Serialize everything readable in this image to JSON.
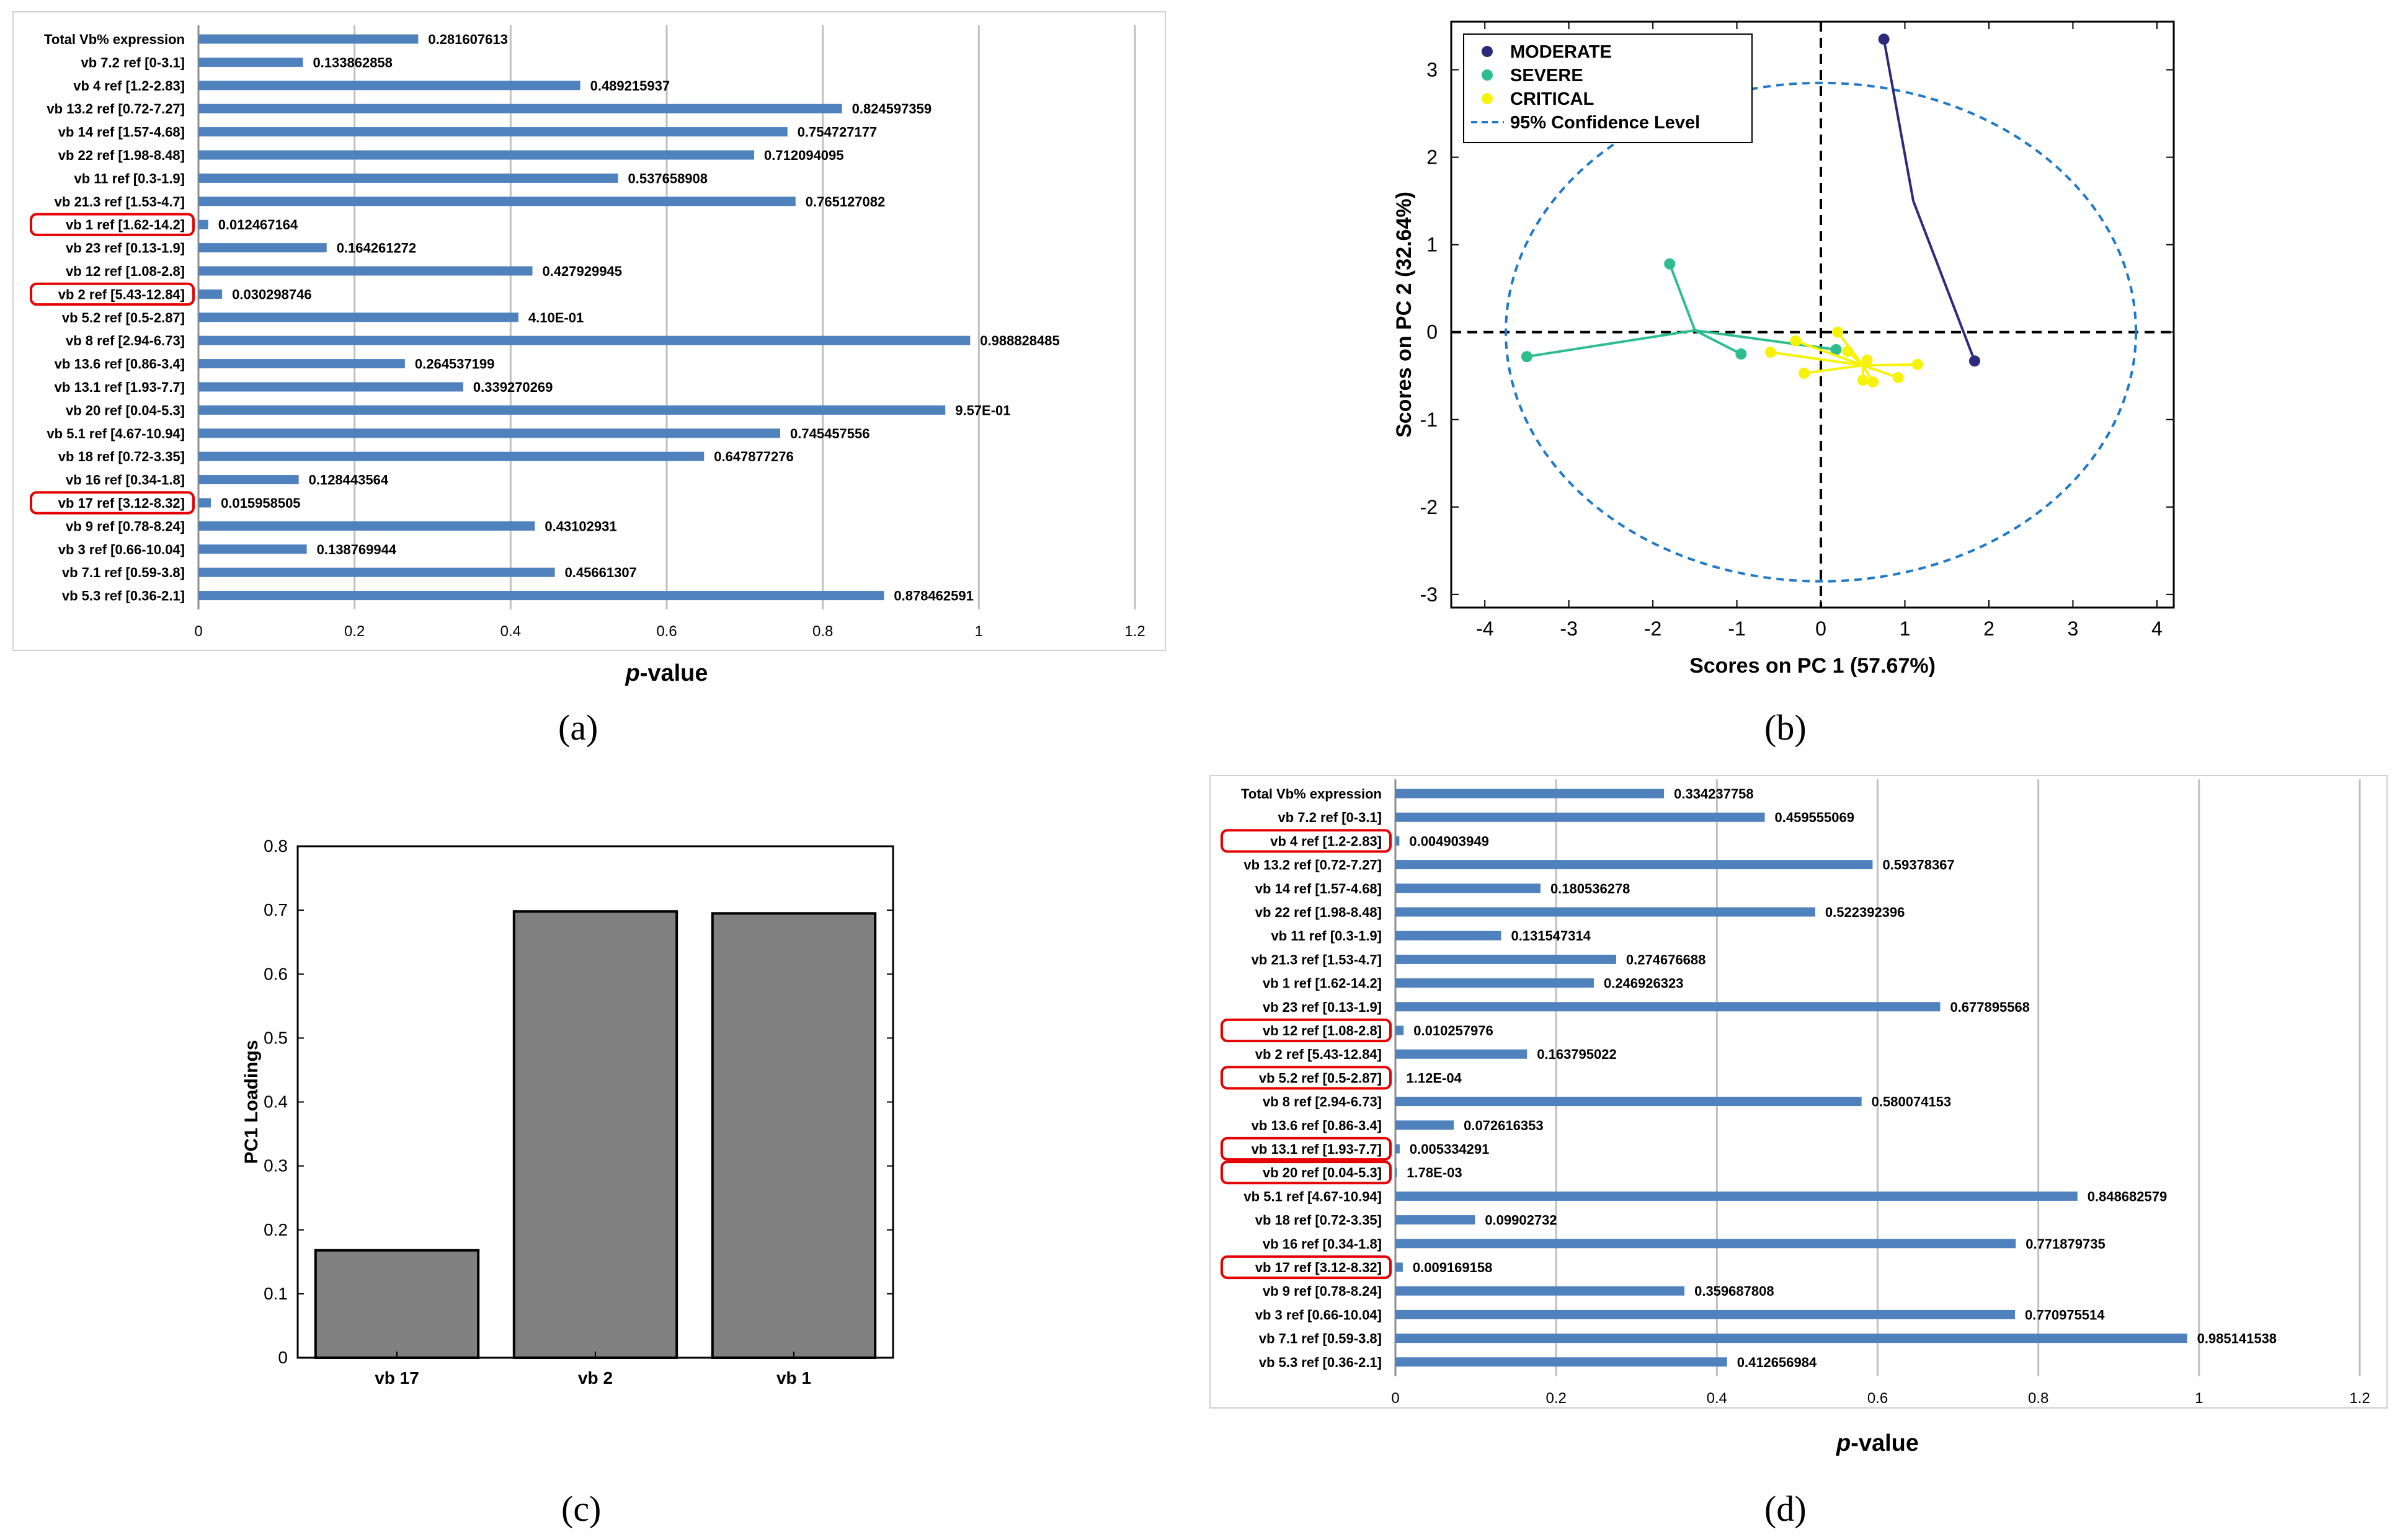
{
  "captions": {
    "a": "(a)",
    "b": "(b)",
    "c": "(c)",
    "d": "(d)"
  },
  "colors": {
    "bar": "#4F81BD",
    "highlight": "#E60000",
    "grid": "#BFBFBF",
    "moderate": "#2E2A7A",
    "severe": "#2DBE8C",
    "critical": "#F7F20A",
    "ellipse": "#1F78C8",
    "pcaBar": "#808080"
  },
  "chart_data": [
    {
      "id": "a",
      "type": "bar",
      "orientation": "horizontal",
      "xlabel_pre": "p",
      "xlabel_post": "-value",
      "xlim": [
        0,
        1.2
      ],
      "xticks": [
        "0",
        "0.2",
        "0.4",
        "0.6",
        "0.8",
        "1",
        "1.2"
      ],
      "categories": [
        "Total Vb% expression",
        "vb 7.2  ref [0-3.1]",
        "vb 4  ref [1.2-2.83]",
        "vb 13.2  ref [0.72-7.27]",
        "vb 14  ref [1.57-4.68]",
        "vb 22  ref [1.98-8.48]",
        "vb 11  ref [0.3-1.9]",
        "vb 21.3  ref [1.53-4.7]",
        "vb 1  ref [1.62-14.2]",
        "vb 23  ref [0.13-1.9]",
        "vb 12  ref [1.08-2.8]",
        "vb 2  ref [5.43-12.84]",
        "vb 5.2  ref [0.5-2.87]",
        "vb 8  ref [2.94-6.73]",
        "vb 13.6  ref [0.86-3.4]",
        "vb 13.1  ref [1.93-7.7]",
        "vb 20 ref [0.04-5.3]",
        "vb 5.1 ref [4.67-10.94]",
        "vb 18 ref [0.72-3.35]",
        "vb 16 ref [0.34-1.8]",
        "vb 17 ref [3.12-8.32]",
        "vb 9 ref [0.78-8.24]",
        "vb 3 ref [0.66-10.04]",
        "vb 7.1 ref [0.59-3.8]",
        "vb 5.3 ref [0.36-2.1]"
      ],
      "values": [
        0.281607613,
        0.133862858,
        0.489215937,
        0.824597359,
        0.754727177,
        0.712094095,
        0.537658908,
        0.765127082,
        0.012467164,
        0.164261272,
        0.427929945,
        0.030298746,
        0.41,
        0.988828485,
        0.264537199,
        0.339270269,
        0.957,
        0.745457556,
        0.647877276,
        0.128443564,
        0.015958505,
        0.43102931,
        0.138769944,
        0.45661307,
        0.878462591
      ],
      "value_labels": [
        "0.281607613",
        "0.133862858",
        "0.489215937",
        "0.824597359",
        "0.754727177",
        "0.712094095",
        "0.537658908",
        "0.765127082",
        "0.012467164",
        "0.164261272",
        "0.427929945",
        "0.030298746",
        "4.10E-01",
        "0.988828485",
        "0.264537199",
        "0.339270269",
        "9.57E-01",
        "0.745457556",
        "0.647877276",
        "0.128443564",
        "0.015958505",
        "0.43102931",
        "0.138769944",
        "0.45661307",
        "0.878462591"
      ],
      "highlighted": [
        8,
        11,
        20
      ]
    },
    {
      "id": "b",
      "type": "scatter",
      "xlabel": "Scores on PC 1 (57.67%)",
      "ylabel": "Scores on PC 2 (32.64%)",
      "xlim": [
        -4.4,
        4.2
      ],
      "ylim": [
        -3.15,
        3.55
      ],
      "xticks": [
        -4,
        -3,
        -2,
        -1,
        0,
        1,
        2,
        3,
        4
      ],
      "yticks": [
        3,
        2,
        1,
        0,
        -1,
        -2,
        -3
      ],
      "legend": [
        "MODERATE",
        "SEVERE",
        "CRITICAL",
        "95% Confidence Level"
      ],
      "ellipse": {
        "cx": 0,
        "cy": 0,
        "rx": 3.75,
        "ry": 2.85
      },
      "groups": [
        {
          "name": "MODERATE",
          "centroid": [
            1.1,
            1.5
          ],
          "points": [
            [
              0.75,
              3.35
            ],
            [
              1.83,
              -0.33
            ]
          ]
        },
        {
          "name": "SEVERE",
          "centroid": [
            -1.5,
            0.02
          ],
          "points": [
            [
              -1.8,
              0.78
            ],
            [
              -3.5,
              -0.28
            ],
            [
              -0.95,
              -0.25
            ],
            [
              0.18,
              -0.2
            ]
          ]
        },
        {
          "name": "CRITICAL",
          "centroid": [
            0.5,
            -0.38
          ],
          "points": [
            [
              -0.6,
              -0.23
            ],
            [
              -0.3,
              -0.1
            ],
            [
              0.2,
              0.0
            ],
            [
              -0.2,
              -0.47
            ],
            [
              0.5,
              -0.55
            ],
            [
              0.62,
              -0.57
            ],
            [
              0.92,
              -0.52
            ],
            [
              1.15,
              -0.37
            ],
            [
              0.32,
              -0.22
            ],
            [
              0.55,
              -0.32
            ]
          ]
        }
      ]
    },
    {
      "id": "c",
      "type": "bar",
      "ylabel": "PC1 Loadings",
      "ylim": [
        0,
        0.8
      ],
      "yticks": [
        "0",
        "0.1",
        "0.2",
        "0.3",
        "0.4",
        "0.5",
        "0.6",
        "0.7",
        "0.8"
      ],
      "categories": [
        "vb 17",
        "vb 2",
        "vb 1"
      ],
      "values": [
        0.168,
        0.698,
        0.695
      ]
    },
    {
      "id": "d",
      "type": "bar",
      "orientation": "horizontal",
      "xlabel_pre": "p",
      "xlabel_post": "-value",
      "xlim": [
        0,
        1.2
      ],
      "xticks": [
        "0",
        "0.2",
        "0.4",
        "0.6",
        "0.8",
        "1",
        "1.2"
      ],
      "categories": [
        "Total Vb% expression",
        "vb 7.2  ref [0-3.1]",
        "vb 4  ref [1.2-2.83]",
        "vb 13.2  ref [0.72-7.27]",
        "vb 14  ref [1.57-4.68]",
        "vb 22  ref [1.98-8.48]",
        "vb 11  ref [0.3-1.9]",
        "vb 21.3  ref [1.53-4.7]",
        "vb 1  ref [1.62-14.2]",
        "vb 23  ref [0.13-1.9]",
        "vb 12  ref [1.08-2.8]",
        "vb 2  ref [5.43-12.84]",
        "vb 5.2  ref [0.5-2.87]",
        "vb 8  ref [2.94-6.73]",
        "vb 13.6  ref [0.86-3.4]",
        "vb 13.1  ref [1.93-7.7]",
        "vb 20 ref [0.04-5.3]",
        "vb 5.1 ref [4.67-10.94]",
        "vb 18 ref [0.72-3.35]",
        "vb 16 ref [0.34-1.8]",
        "vb 17 ref [3.12-8.32]",
        "vb 9 ref [0.78-8.24]",
        "vb 3 ref [0.66-10.04]",
        "vb 7.1 ref [0.59-3.8]",
        "vb 5.3 ref [0.36-2.1]"
      ],
      "values": [
        0.334237758,
        0.459555069,
        0.004903949,
        0.59378367,
        0.180536278,
        0.522392396,
        0.131547314,
        0.274676688,
        0.246926323,
        0.677895568,
        0.010257976,
        0.163795022,
        0.000112,
        0.580074153,
        0.072616353,
        0.005334291,
        0.00178,
        0.848682579,
        0.09902732,
        0.771879735,
        0.009169158,
        0.359687808,
        0.770975514,
        0.985141538,
        0.412656984
      ],
      "value_labels": [
        "0.334237758",
        "0.459555069",
        "0.004903949",
        "0.59378367",
        "0.180536278",
        "0.522392396",
        "0.131547314",
        "0.274676688",
        "0.246926323",
        "0.677895568",
        "0.010257976",
        "0.163795022",
        "1.12E-04",
        "0.580074153",
        "0.072616353",
        "0.005334291",
        "1.78E-03",
        "0.848682579",
        "0.09902732",
        "0.771879735",
        "0.009169158",
        "0.359687808",
        "0.770975514",
        "0.985141538",
        "0.412656984"
      ],
      "highlighted": [
        2,
        10,
        12,
        15,
        16,
        20
      ]
    }
  ]
}
